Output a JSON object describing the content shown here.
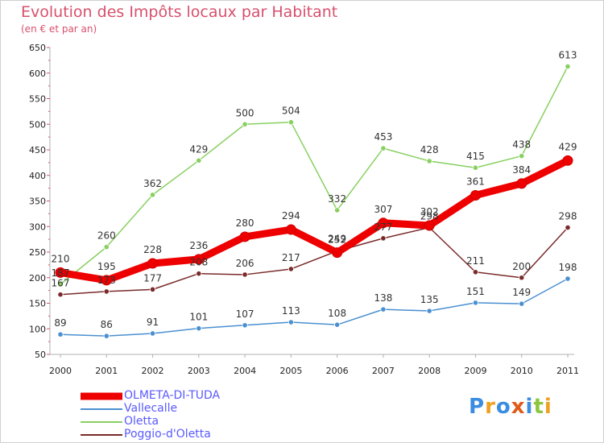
{
  "header": {
    "title": "Evolution des Impôts locaux par Habitant",
    "subtitle": "(en € et par an)"
  },
  "logo": {
    "text": "Proxiti"
  },
  "chart_data": {
    "type": "line",
    "title": "Evolution des Impôts locaux par Habitant",
    "subtitle": "(en € et par an)",
    "xlabel": "",
    "ylabel": "",
    "categories": [
      "2000",
      "2001",
      "2002",
      "2003",
      "2004",
      "2005",
      "2006",
      "2007",
      "2008",
      "2009",
      "2010",
      "2011"
    ],
    "ylim": [
      50,
      650
    ],
    "yticks": [
      50,
      100,
      150,
      200,
      250,
      300,
      350,
      400,
      450,
      500,
      550,
      600,
      650
    ],
    "grid": false,
    "legend_position": "bottom-left",
    "series": [
      {
        "name": "OLMETA-DI-TUDA",
        "color": "#ee0000",
        "bold": true,
        "values": [
          210,
          195,
          228,
          236,
          280,
          294,
          249,
          307,
          302,
          361,
          384,
          429
        ],
        "labels": [
          "210",
          "195",
          "228",
          "236",
          "280",
          "294",
          "249",
          "307",
          "302",
          "361",
          "384",
          "429"
        ]
      },
      {
        "name": "Vallecalle",
        "color": "#4a90d0",
        "values": [
          89,
          86,
          91,
          101,
          107,
          113,
          108,
          138,
          135,
          151,
          149,
          198
        ],
        "labels": [
          "89",
          "86",
          "91",
          "101",
          "107",
          "113",
          "108",
          "138",
          "135",
          "151",
          "149",
          "198"
        ]
      },
      {
        "name": "Oletta",
        "color": "#88d060",
        "values": [
          187,
          260,
          362,
          429,
          500,
          504,
          332,
          453,
          428,
          415,
          438,
          613
        ],
        "labels": [
          "187",
          "260",
          "362",
          "429",
          "500",
          "504",
          "332",
          "453",
          "428",
          "415",
          "438",
          "613"
        ]
      },
      {
        "name": "Poggio-d'Oletta",
        "color": "#7a2a2a",
        "values": [
          167,
          173,
          177,
          208,
          206,
          217,
          252,
          277,
          298,
          211,
          200,
          298
        ],
        "labels": [
          "167",
          "173",
          "177",
          "208",
          "206",
          "217",
          "252",
          "277",
          "298",
          "211",
          "200",
          "298"
        ]
      }
    ]
  }
}
